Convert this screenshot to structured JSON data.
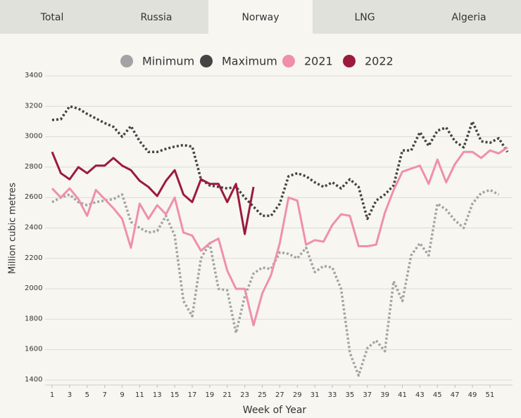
{
  "tabs": [
    "Total",
    "Russia",
    "Norway",
    "LNG",
    "Algeria"
  ],
  "active_tab": 2,
  "chart_data": {
    "type": "line",
    "x_label": "Week of Year",
    "y_label": "Million cubic metres",
    "x": [
      1,
      2,
      3,
      4,
      5,
      6,
      7,
      8,
      9,
      10,
      11,
      12,
      13,
      14,
      15,
      16,
      17,
      18,
      19,
      20,
      21,
      22,
      23,
      24,
      25,
      26,
      27,
      28,
      29,
      30,
      31,
      32,
      33,
      34,
      35,
      36,
      37,
      38,
      39,
      40,
      41,
      42,
      43,
      44,
      45,
      46,
      47,
      48,
      49,
      50,
      51,
      52,
      53
    ],
    "xlim": [
      1,
      53
    ],
    "xticks": [
      1,
      3,
      5,
      7,
      9,
      11,
      13,
      15,
      17,
      19,
      21,
      23,
      25,
      27,
      29,
      31,
      33,
      35,
      37,
      39,
      41,
      43,
      45,
      47,
      49,
      51
    ],
    "ylim": [
      1400,
      3400
    ],
    "yticks": [
      1400,
      1600,
      1800,
      2000,
      2200,
      2400,
      2600,
      2800,
      3000,
      3200,
      3400
    ],
    "grid": true,
    "series": [
      {
        "name": "Minimum",
        "color": "#a3a3a3",
        "style": "dotted",
        "values": [
          2570,
          2600,
          2620,
          2570,
          2550,
          2570,
          2580,
          2590,
          2620,
          2440,
          2400,
          2370,
          2380,
          2480,
          2350,
          1920,
          1820,
          2200,
          2300,
          2000,
          1990,
          1710,
          1950,
          2100,
          2140,
          2130,
          2240,
          2230,
          2200,
          2270,
          2110,
          2150,
          2140,
          2000,
          1580,
          1430,
          1610,
          1660,
          1590,
          2050,
          1920,
          2220,
          2300,
          2220,
          2560,
          2520,
          2450,
          2400,
          2560,
          2630,
          2650,
          2620,
          null
        ]
      },
      {
        "name": "Maximum",
        "color": "#444444",
        "style": "dotted",
        "values": [
          3110,
          3115,
          3200,
          3185,
          3150,
          3120,
          3090,
          3065,
          3000,
          3070,
          2970,
          2900,
          2900,
          2920,
          2935,
          2945,
          2935,
          2720,
          2680,
          2670,
          2660,
          2670,
          2600,
          2540,
          2480,
          2480,
          2560,
          2740,
          2760,
          2740,
          2700,
          2670,
          2700,
          2660,
          2720,
          2670,
          2460,
          2580,
          2620,
          2680,
          2910,
          2910,
          3030,
          2940,
          3040,
          3060,
          2970,
          2930,
          3100,
          2970,
          2960,
          2990,
          2900
        ]
      },
      {
        "name": "2021",
        "color": "#ef8fab",
        "style": "solid",
        "values": [
          2660,
          2600,
          2660,
          2590,
          2480,
          2650,
          2590,
          2530,
          2460,
          2270,
          2560,
          2460,
          2550,
          2490,
          2600,
          2370,
          2350,
          2250,
          2300,
          2330,
          2120,
          2000,
          2000,
          1760,
          1970,
          2090,
          2300,
          2600,
          2580,
          2290,
          2320,
          2310,
          2420,
          2490,
          2480,
          2280,
          2280,
          2290,
          2500,
          2650,
          2770,
          2790,
          2810,
          2690,
          2850,
          2700,
          2820,
          2900,
          2900,
          2860,
          2910,
          2890,
          2930
        ]
      },
      {
        "name": "2022",
        "color": "#9c1a3c",
        "style": "solid",
        "values": [
          2900,
          2760,
          2720,
          2800,
          2760,
          2810,
          2810,
          2860,
          2810,
          2780,
          2710,
          2670,
          2610,
          2710,
          2780,
          2620,
          2570,
          2720,
          2690,
          2690,
          2570,
          2690,
          2360,
          2670,
          null,
          null,
          null,
          null,
          null,
          null,
          null,
          null,
          null,
          null,
          null,
          null,
          null,
          null,
          null,
          null,
          null,
          null,
          null,
          null,
          null,
          null,
          null,
          null,
          null,
          null,
          null,
          null,
          null
        ]
      }
    ]
  }
}
